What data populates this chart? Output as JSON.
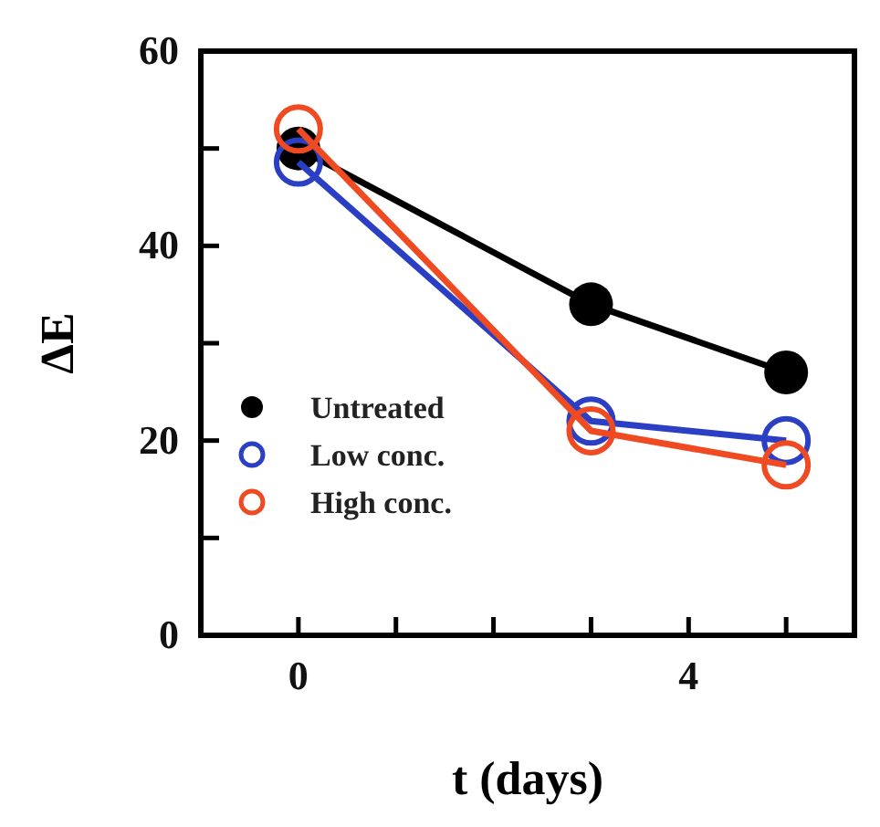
{
  "chart_data": {
    "type": "line",
    "xlabel": "t (days)",
    "ylabel": "ΔE",
    "x": [
      0,
      3,
      5
    ],
    "series": [
      {
        "name": "Untreated",
        "color": "#000000",
        "values": [
          50,
          34,
          27
        ]
      },
      {
        "name": "Low conc.",
        "color": "#2b3fc4",
        "values": [
          48.6,
          22,
          20
        ]
      },
      {
        "name": "High conc.",
        "color": "#f04a22",
        "values": [
          52,
          21,
          17.5
        ]
      }
    ],
    "xlim": [
      -1,
      5.7
    ],
    "ylim": [
      0,
      60
    ],
    "xticks": [
      {
        "value": -1,
        "label": null
      },
      0,
      {
        "value": 1,
        "label": null
      },
      {
        "value": 2,
        "label": null
      },
      {
        "value": 3,
        "label": null
      },
      4,
      {
        "value": 5,
        "label": null
      }
    ],
    "yticks": [
      0,
      {
        "value": 10,
        "label": null
      },
      20,
      {
        "value": 30,
        "label": null
      },
      40,
      {
        "value": 50,
        "label": null
      },
      60
    ],
    "grid": false,
    "legend": "bottom left",
    "marker": "circle",
    "line_style": "solid"
  }
}
